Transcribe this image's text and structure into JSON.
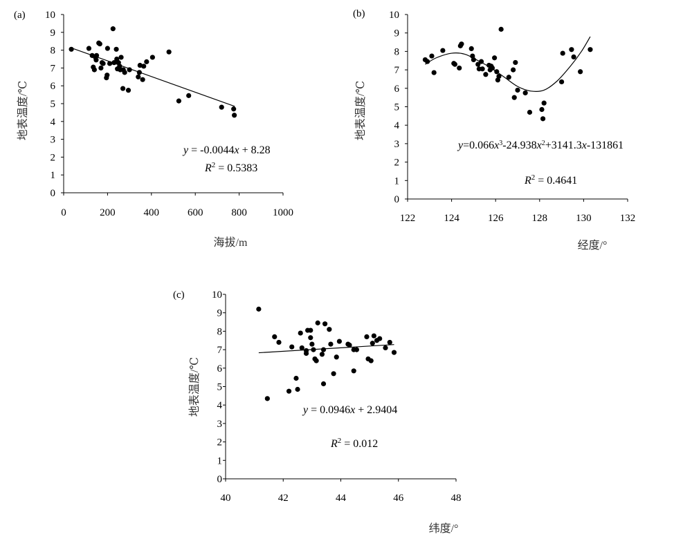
{
  "chart_data": [
    {
      "panel": "(a)",
      "type": "scatter",
      "xlabel": "海拔/m",
      "ylabel": "地表温度/℃",
      "xlim": [
        0,
        1000
      ],
      "ylim": [
        0,
        10
      ],
      "xticks": [
        0,
        200,
        400,
        600,
        800,
        1000
      ],
      "yticks": [
        0,
        1,
        2,
        3,
        4,
        5,
        6,
        7,
        8,
        9,
        10
      ],
      "equation": "y = -0.0044x + 8.28",
      "r2": "R2 = 0.5383",
      "fit": {
        "kind": "linear",
        "a": -0.0044,
        "b": 8.28,
        "x_range": [
          30,
          780
        ]
      },
      "points": [
        [
          35,
          8.05
        ],
        [
          115,
          8.1
        ],
        [
          130,
          7.7
        ],
        [
          135,
          7.05
        ],
        [
          140,
          6.9
        ],
        [
          145,
          7.6
        ],
        [
          148,
          7.45
        ],
        [
          150,
          7.7
        ],
        [
          160,
          8.4
        ],
        [
          165,
          8.35
        ],
        [
          170,
          7.0
        ],
        [
          175,
          7.3
        ],
        [
          180,
          7.25
        ],
        [
          195,
          6.45
        ],
        [
          198,
          6.6
        ],
        [
          200,
          8.1
        ],
        [
          210,
          7.25
        ],
        [
          225,
          9.2
        ],
        [
          230,
          7.3
        ],
        [
          240,
          8.05
        ],
        [
          242,
          7.5
        ],
        [
          245,
          6.95
        ],
        [
          250,
          7.3
        ],
        [
          255,
          7.1
        ],
        [
          258,
          6.9
        ],
        [
          262,
          7.6
        ],
        [
          270,
          5.85
        ],
        [
          272,
          6.9
        ],
        [
          278,
          6.75
        ],
        [
          295,
          5.75
        ],
        [
          300,
          6.9
        ],
        [
          340,
          6.5
        ],
        [
          345,
          6.75
        ],
        [
          348,
          7.15
        ],
        [
          360,
          6.35
        ],
        [
          365,
          7.1
        ],
        [
          378,
          7.35
        ],
        [
          405,
          7.6
        ],
        [
          480,
          7.9
        ],
        [
          525,
          5.15
        ],
        [
          570,
          5.45
        ],
        [
          720,
          4.8
        ],
        [
          775,
          4.7
        ],
        [
          778,
          4.35
        ]
      ]
    },
    {
      "panel": "(b)",
      "type": "scatter",
      "xlabel": "经度/°",
      "ylabel": "地表温度/℃",
      "xlim": [
        122,
        132
      ],
      "ylim": [
        0,
        10
      ],
      "xticks": [
        122,
        124,
        126,
        128,
        130,
        132
      ],
      "yticks": [
        0,
        1,
        2,
        3,
        4,
        5,
        6,
        7,
        8,
        9,
        10
      ],
      "equation": "y=0.066x3-24.938x2+3141.3x-131861",
      "r2": "R2 = 0.4641",
      "fit": {
        "kind": "cubic_smooth",
        "x_range": [
          122.8,
          130.3
        ],
        "y_samples": [
          [
            122.8,
            7.3
          ],
          [
            123.3,
            7.65
          ],
          [
            124.0,
            7.9
          ],
          [
            124.6,
            7.85
          ],
          [
            125.2,
            7.5
          ],
          [
            125.8,
            7.1
          ],
          [
            126.4,
            6.6
          ],
          [
            127.0,
            6.1
          ],
          [
            127.6,
            5.85
          ],
          [
            128.2,
            5.9
          ],
          [
            128.8,
            6.4
          ],
          [
            129.4,
            7.2
          ],
          [
            129.9,
            8.0
          ],
          [
            130.3,
            8.8
          ]
        ]
      },
      "points": [
        [
          122.8,
          7.55
        ],
        [
          122.9,
          7.45
        ],
        [
          123.1,
          7.75
        ],
        [
          123.2,
          6.85
        ],
        [
          123.6,
          8.05
        ],
        [
          124.1,
          7.35
        ],
        [
          124.15,
          7.3
        ],
        [
          124.35,
          7.1
        ],
        [
          124.4,
          8.3
        ],
        [
          124.45,
          8.4
        ],
        [
          124.9,
          8.15
        ],
        [
          124.95,
          7.75
        ],
        [
          125.0,
          7.55
        ],
        [
          125.2,
          7.3
        ],
        [
          125.25,
          7.05
        ],
        [
          125.35,
          7.45
        ],
        [
          125.4,
          7.05
        ],
        [
          125.55,
          6.75
        ],
        [
          125.7,
          7.25
        ],
        [
          125.75,
          7.0
        ],
        [
          125.8,
          7.2
        ],
        [
          125.85,
          7.1
        ],
        [
          125.95,
          7.65
        ],
        [
          126.05,
          6.9
        ],
        [
          126.1,
          6.45
        ],
        [
          126.15,
          6.65
        ],
        [
          126.25,
          9.2
        ],
        [
          126.6,
          6.6
        ],
        [
          126.8,
          7.0
        ],
        [
          126.85,
          5.5
        ],
        [
          126.9,
          7.4
        ],
        [
          127.0,
          5.9
        ],
        [
          127.35,
          5.75
        ],
        [
          127.55,
          4.7
        ],
        [
          128.1,
          4.85
        ],
        [
          128.15,
          4.35
        ],
        [
          128.2,
          5.2
        ],
        [
          129.0,
          6.35
        ],
        [
          129.05,
          7.9
        ],
        [
          129.45,
          8.1
        ],
        [
          129.55,
          7.7
        ],
        [
          129.85,
          6.9
        ],
        [
          130.3,
          8.1
        ]
      ]
    },
    {
      "panel": "(c)",
      "type": "scatter",
      "xlabel": "纬度/°",
      "ylabel": "地表温度/℃",
      "xlim": [
        40,
        48
      ],
      "ylim": [
        0,
        10
      ],
      "xticks": [
        40,
        42,
        44,
        46,
        48
      ],
      "yticks": [
        0,
        1,
        2,
        3,
        4,
        5,
        6,
        7,
        8,
        9,
        10
      ],
      "equation": "y = 0.0946x + 2.9404",
      "r2": "R2 = 0.012",
      "fit": {
        "kind": "linear",
        "a": 0.0946,
        "b": 2.9404,
        "x_range": [
          41.15,
          45.85
        ]
      },
      "points": [
        [
          41.15,
          9.2
        ],
        [
          41.45,
          4.35
        ],
        [
          41.7,
          7.7
        ],
        [
          41.85,
          7.4
        ],
        [
          42.2,
          4.75
        ],
        [
          42.3,
          7.15
        ],
        [
          42.45,
          5.45
        ],
        [
          42.5,
          4.85
        ],
        [
          42.6,
          7.9
        ],
        [
          42.65,
          7.1
        ],
        [
          42.8,
          6.8
        ],
        [
          42.8,
          6.95
        ],
        [
          42.85,
          8.05
        ],
        [
          42.95,
          7.65
        ],
        [
          42.95,
          8.05
        ],
        [
          43.0,
          7.3
        ],
        [
          43.05,
          7.0
        ],
        [
          43.1,
          6.5
        ],
        [
          43.15,
          6.4
        ],
        [
          43.2,
          8.45
        ],
        [
          43.35,
          6.75
        ],
        [
          43.4,
          7.0
        ],
        [
          43.4,
          5.15
        ],
        [
          43.45,
          8.4
        ],
        [
          43.6,
          8.1
        ],
        [
          43.65,
          7.3
        ],
        [
          43.75,
          5.7
        ],
        [
          43.85,
          6.6
        ],
        [
          43.95,
          7.45
        ],
        [
          44.25,
          7.3
        ],
        [
          44.3,
          7.25
        ],
        [
          44.45,
          5.85
        ],
        [
          44.45,
          7.0
        ],
        [
          44.55,
          7.0
        ],
        [
          44.9,
          7.7
        ],
        [
          44.95,
          6.5
        ],
        [
          45.05,
          6.4
        ],
        [
          45.1,
          7.35
        ],
        [
          45.15,
          7.75
        ],
        [
          45.25,
          7.5
        ],
        [
          45.35,
          7.6
        ],
        [
          45.55,
          7.1
        ],
        [
          45.7,
          7.4
        ],
        [
          45.85,
          6.85
        ]
      ]
    }
  ]
}
